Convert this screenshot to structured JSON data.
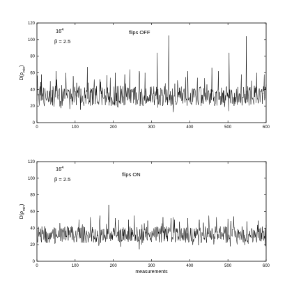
{
  "chart_data": [
    {
      "type": "line",
      "ylabel_main": "D(ρ",
      "ylabel_sub": "min",
      "ylabel_close": ")",
      "annotation_size": "16",
      "annotation_exp": "4",
      "annotation_beta": "β = 2.5",
      "annotation_flips": "flips OFF",
      "xlabel": "",
      "xlim": [
        0,
        600
      ],
      "ylim": [
        0,
        120
      ],
      "xticks": [
        "0",
        "100",
        "200",
        "300",
        "400",
        "500",
        "600"
      ],
      "yticks": [
        "0",
        "20",
        "40",
        "60",
        "80",
        "100",
        "120"
      ],
      "series_profile": {
        "n": 601,
        "base": 32,
        "noise": 12,
        "seed": 7,
        "spikes": [
          [
            12,
            58
          ],
          [
            35,
            50
          ],
          [
            50,
            62
          ],
          [
            95,
            56
          ],
          [
            132,
            67
          ],
          [
            150,
            52
          ],
          [
            183,
            57
          ],
          [
            192,
            54
          ],
          [
            205,
            60
          ],
          [
            230,
            58
          ],
          [
            243,
            64
          ],
          [
            268,
            62
          ],
          [
            283,
            60
          ],
          [
            315,
            84
          ],
          [
            345,
            105
          ],
          [
            395,
            62
          ],
          [
            420,
            54
          ],
          [
            458,
            66
          ],
          [
            475,
            62
          ],
          [
            503,
            84
          ],
          [
            535,
            58
          ],
          [
            548,
            104
          ],
          [
            575,
            60
          ],
          [
            595,
            58
          ]
        ]
      }
    },
    {
      "type": "line",
      "ylabel_main": "D(ρ",
      "ylabel_sub": "min",
      "ylabel_close": ")",
      "annotation_size": "16",
      "annotation_exp": "4",
      "annotation_beta": "β = 2.5",
      "annotation_flips": "flips ON",
      "xlabel": "measurements",
      "xlim": [
        0,
        600
      ],
      "ylim": [
        0,
        120
      ],
      "xticks": [
        "0",
        "100",
        "200",
        "300",
        "400",
        "500",
        "600"
      ],
      "yticks": [
        "0",
        "20",
        "40",
        "60",
        "80",
        "100",
        "120"
      ],
      "series_profile": {
        "n": 601,
        "base": 32,
        "noise": 10,
        "seed": 19,
        "spikes": [
          [
            20,
            42
          ],
          [
            60,
            46
          ],
          [
            110,
            50
          ],
          [
            140,
            53
          ],
          [
            165,
            55
          ],
          [
            188,
            68
          ],
          [
            205,
            52
          ],
          [
            240,
            50
          ],
          [
            255,
            55
          ],
          [
            290,
            49
          ],
          [
            330,
            53
          ],
          [
            360,
            50
          ],
          [
            395,
            52
          ],
          [
            425,
            50
          ],
          [
            450,
            55
          ],
          [
            470,
            53
          ],
          [
            515,
            54
          ],
          [
            550,
            48
          ],
          [
            580,
            49
          ]
        ]
      }
    }
  ]
}
